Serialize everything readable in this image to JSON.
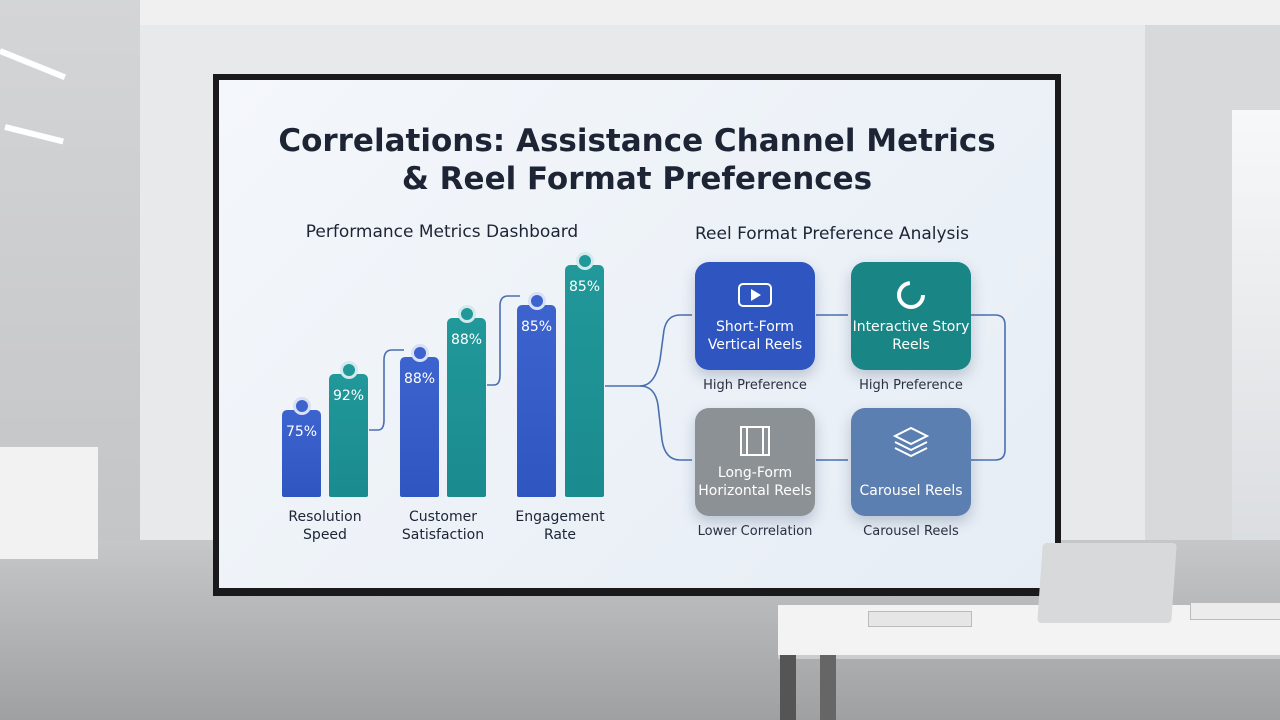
{
  "title": [
    "Correlations: Assistance Channel Metrics",
    "& Reel Format Preferences"
  ],
  "dashboard": {
    "title": "Performance Metrics Dashboard",
    "groups": [
      {
        "label": "Resolution Speed",
        "bars": [
          "75%",
          "92%"
        ]
      },
      {
        "label": "Customer Satisfaction",
        "bars": [
          "88%",
          "88%"
        ]
      },
      {
        "label": "Engagement Rate",
        "bars": [
          "85%",
          "85%"
        ]
      }
    ]
  },
  "preferences": {
    "title": "Reel Format Preference Analysis",
    "cards": [
      {
        "label": "Short-Form Vertical Reels",
        "caption": "High Preference"
      },
      {
        "label": "Interactive Story Reels",
        "caption": "High Preference"
      },
      {
        "label": "Long-Form Horizontal Reels",
        "caption": "Lower Correlation"
      },
      {
        "label": "Carousel Reels",
        "caption": "Carousel Reels"
      }
    ]
  }
}
